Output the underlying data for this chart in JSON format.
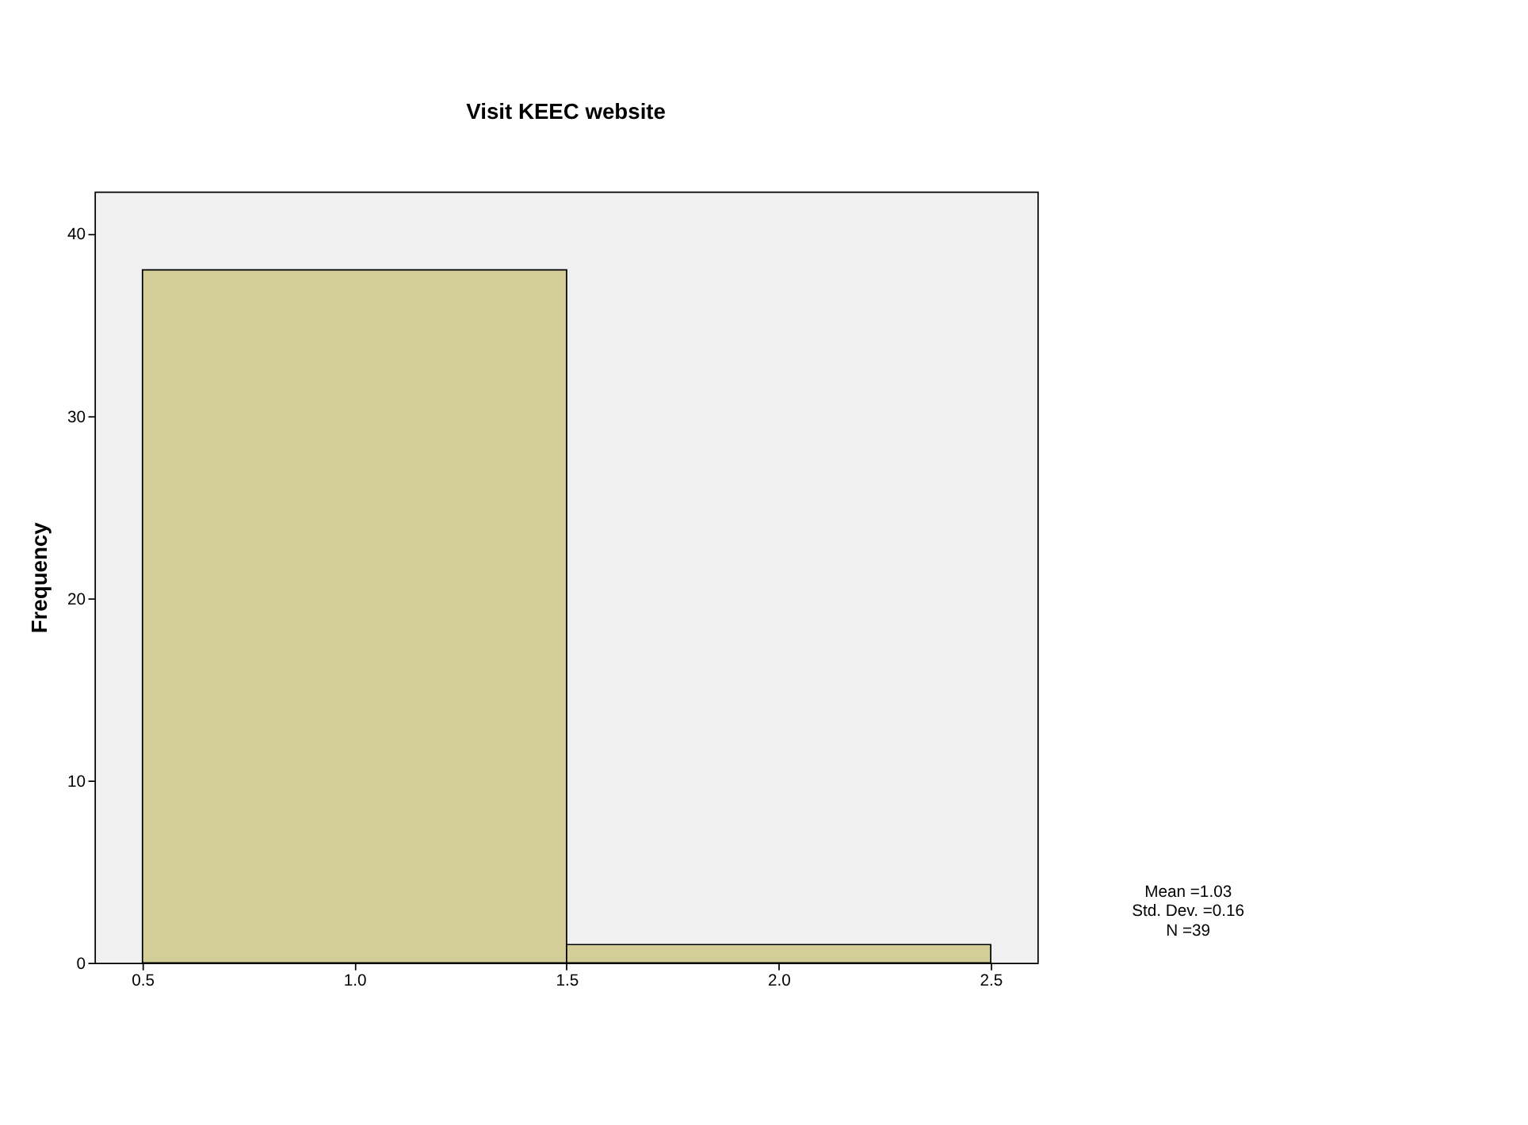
{
  "chart_data": {
    "type": "histogram",
    "title": "Visit KEEC website",
    "ylabel": "Frequency",
    "bins": [
      0.5,
      1.5,
      2.5
    ],
    "values": [
      38,
      1
    ],
    "color": "#d3ce97",
    "xlim": [
      0.387,
      2.61
    ],
    "ylim": [
      0,
      42.3
    ],
    "xticks": [
      0.5,
      {
        "value": 1,
        "label": "1.0"
      },
      1.5,
      {
        "value": 2,
        "label": "2.0"
      },
      2.5
    ],
    "yticks": [
      0,
      10,
      20,
      30,
      40
    ],
    "grid": false,
    "annotations": [
      "Mean =1.03",
      "Std. Dev. =0.16",
      "N =39"
    ]
  }
}
